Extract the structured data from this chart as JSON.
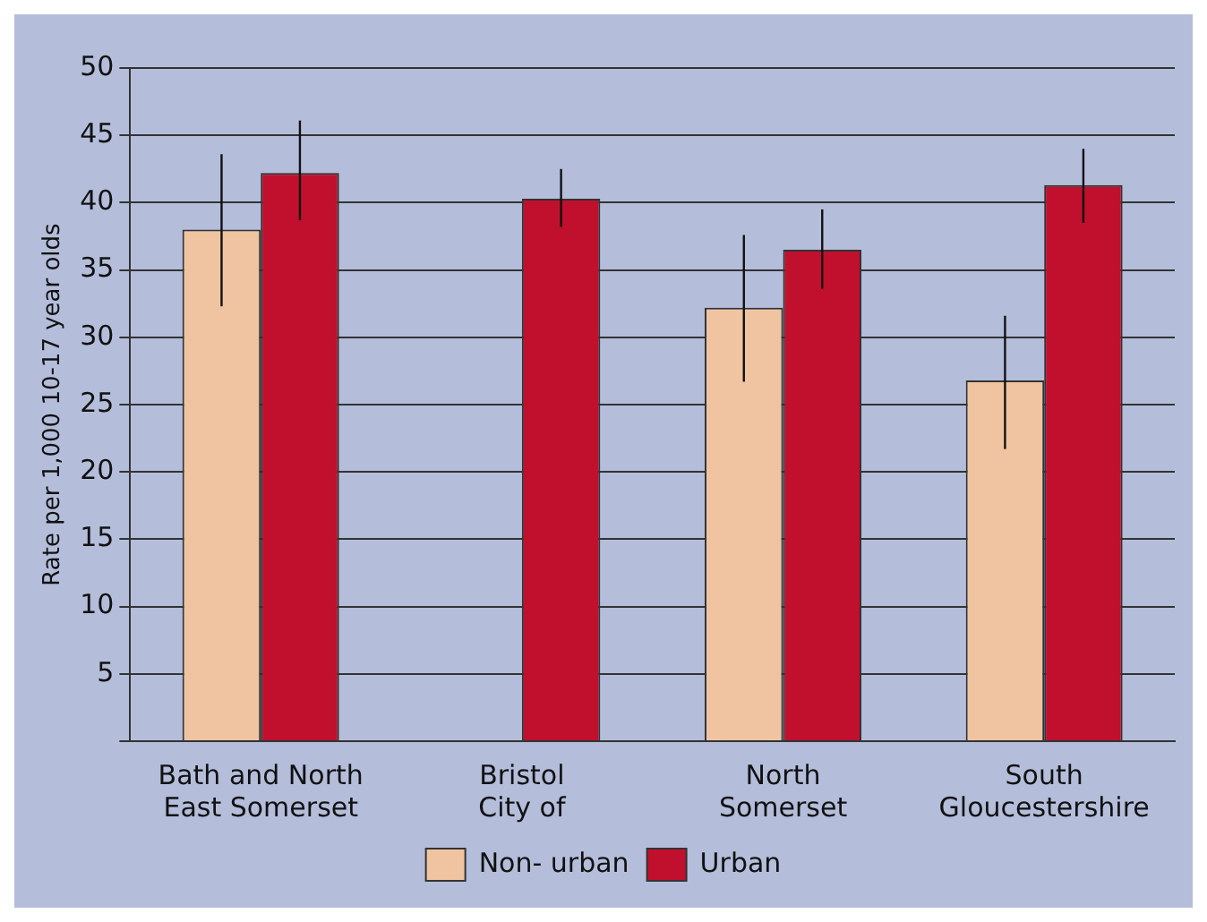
{
  "chart_data": {
    "type": "bar",
    "ylabel": "Rate per 1,000 10-17 year olds",
    "categories": [
      "Bath and North\nEast Somerset",
      "Bristol\nCity of",
      "North\nSomerset",
      "South\nGloucestershire"
    ],
    "series": [
      {
        "name": "Non- urban",
        "color": "#f0c4a0",
        "values": [
          38.0,
          null,
          32.2,
          26.8
        ],
        "errors": [
          [
            32.3,
            43.6
          ],
          null,
          [
            26.7,
            37.6
          ],
          [
            21.7,
            31.6
          ]
        ]
      },
      {
        "name": "Urban",
        "color": "#c0102e",
        "values": [
          42.2,
          40.3,
          36.5,
          41.3
        ],
        "errors": [
          [
            38.7,
            46.1
          ],
          [
            38.2,
            42.5
          ],
          [
            33.6,
            39.5
          ],
          [
            38.5,
            44.0
          ]
        ]
      }
    ],
    "ylim": [
      0,
      50
    ],
    "yticks": [
      {
        "value": 0,
        "label": null
      },
      5,
      10,
      15,
      20,
      25,
      30,
      35,
      40,
      45,
      50
    ],
    "grid": "y",
    "legend": "bottom"
  }
}
